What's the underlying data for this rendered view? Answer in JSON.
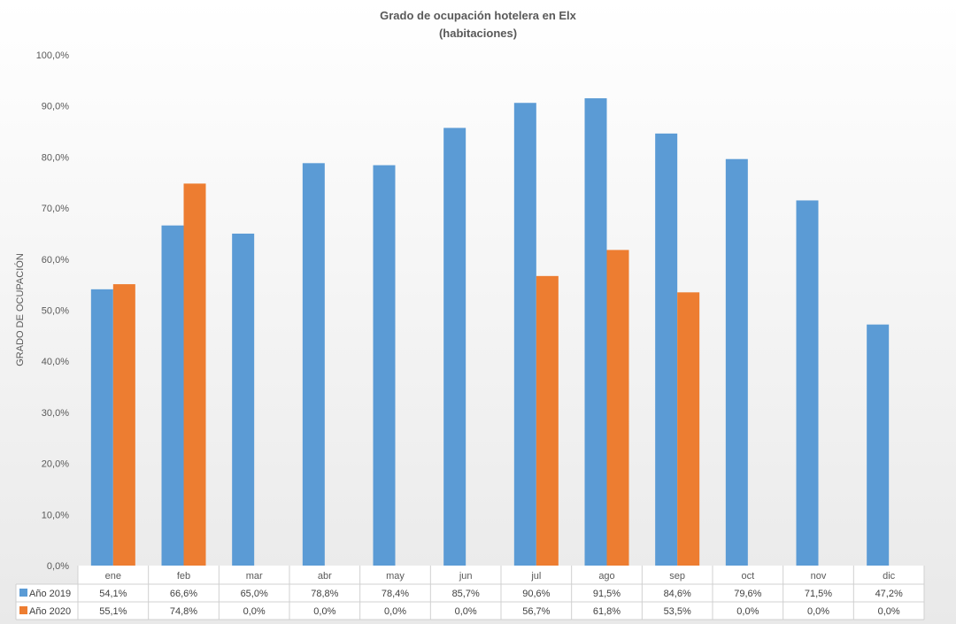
{
  "chart_data": {
    "type": "bar",
    "title": "Grado de ocupación hotelera en Elx",
    "subtitle": "(habitaciones)",
    "ylabel": "GRADO DE OCUPACIÓN",
    "xlabel": "",
    "ylim": [
      0,
      100
    ],
    "yticks": [
      "0,0%",
      "10,0%",
      "20,0%",
      "30,0%",
      "40,0%",
      "50,0%",
      "60,0%",
      "70,0%",
      "80,0%",
      "90,0%",
      "100,0%"
    ],
    "grid": false,
    "legend": "data-table",
    "categories": [
      "ene",
      "feb",
      "mar",
      "abr",
      "may",
      "jun",
      "jul",
      "ago",
      "sep",
      "oct",
      "nov",
      "dic"
    ],
    "series": [
      {
        "name": "Año 2019",
        "color": "#5B9BD5",
        "values": [
          54.1,
          66.6,
          65.0,
          78.8,
          78.4,
          85.7,
          90.6,
          91.5,
          84.6,
          79.6,
          71.5,
          47.2
        ],
        "labels": [
          "54,1%",
          "66,6%",
          "65,0%",
          "78,8%",
          "78,4%",
          "85,7%",
          "90,6%",
          "91,5%",
          "84,6%",
          "79,6%",
          "71,5%",
          "47,2%"
        ]
      },
      {
        "name": "Año 2020",
        "color": "#ED7D31",
        "values": [
          55.1,
          74.8,
          0,
          0,
          0,
          0,
          56.7,
          61.8,
          53.5,
          0,
          0,
          0
        ],
        "labels": [
          "55,1%",
          "74,8%",
          "0,0%",
          "0,0%",
          "0,0%",
          "0,0%",
          "56,7%",
          "61,8%",
          "53,5%",
          "0,0%",
          "0,0%",
          "0,0%"
        ]
      }
    ]
  }
}
